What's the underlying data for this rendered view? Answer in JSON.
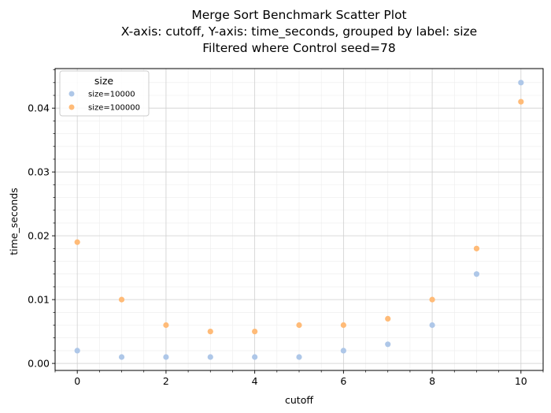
{
  "chart_data": {
    "type": "scatter",
    "title_lines": [
      "Merge Sort Benchmark Scatter Plot",
      "X-axis: cutoff, Y-axis: time_seconds, grouped by label: size",
      "Filtered where Control seed=78"
    ],
    "xlabel": "cutoff",
    "ylabel": "time_seconds",
    "xlim": [
      -0.5,
      10.5
    ],
    "ylim": [
      -0.0011,
      0.0462
    ],
    "x_ticks": [
      0,
      2,
      4,
      6,
      8,
      10
    ],
    "x_tick_labels": [
      "0",
      "2",
      "4",
      "6",
      "8",
      "10"
    ],
    "y_ticks": [
      0.0,
      0.01,
      0.02,
      0.03,
      0.04
    ],
    "y_tick_labels": [
      "0.00",
      "0.01",
      "0.02",
      "0.03",
      "0.04"
    ],
    "grid": true,
    "minor_grid": true,
    "legend": {
      "title": "size",
      "position": "top-left"
    },
    "series": [
      {
        "name": "size=10000",
        "color": "#aec7e8",
        "points": [
          {
            "x": 0,
            "y": 0.002
          },
          {
            "x": 1,
            "y": 0.001
          },
          {
            "x": 2,
            "y": 0.001
          },
          {
            "x": 3,
            "y": 0.001
          },
          {
            "x": 4,
            "y": 0.001
          },
          {
            "x": 5,
            "y": 0.001
          },
          {
            "x": 6,
            "y": 0.002
          },
          {
            "x": 7,
            "y": 0.003
          },
          {
            "x": 8,
            "y": 0.006
          },
          {
            "x": 9,
            "y": 0.014
          },
          {
            "x": 10,
            "y": 0.044
          }
        ]
      },
      {
        "name": "size=100000",
        "color": "#ffbb78",
        "points": [
          {
            "x": 0,
            "y": 0.019
          },
          {
            "x": 1,
            "y": 0.01
          },
          {
            "x": 2,
            "y": 0.006
          },
          {
            "x": 3,
            "y": 0.005
          },
          {
            "x": 4,
            "y": 0.005
          },
          {
            "x": 5,
            "y": 0.006
          },
          {
            "x": 6,
            "y": 0.006
          },
          {
            "x": 7,
            "y": 0.007
          },
          {
            "x": 8,
            "y": 0.01
          },
          {
            "x": 9,
            "y": 0.018
          },
          {
            "x": 10,
            "y": 0.041
          }
        ]
      }
    ]
  }
}
